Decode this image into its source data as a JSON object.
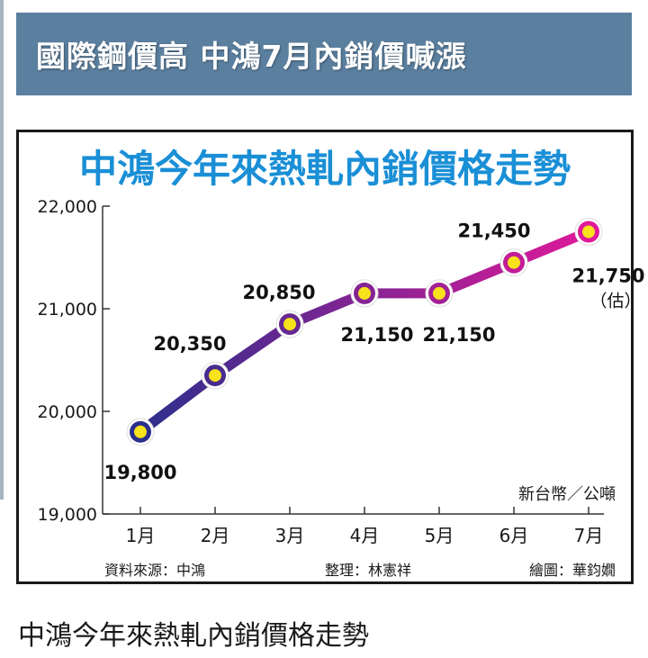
{
  "header": {
    "title": "國際鋼價高 中鴻7月內銷價喊漲"
  },
  "caption": "中鴻今年來熱軋內銷價格走勢",
  "chart_data": {
    "type": "line",
    "title": "中鴻今年來熱軋內銷價格走勢",
    "unit": "新台幣／公噸",
    "categories": [
      "1月",
      "2月",
      "3月",
      "4月",
      "5月",
      "6月",
      "7月"
    ],
    "values": [
      19800,
      20350,
      20850,
      21150,
      21150,
      21450,
      21750
    ],
    "data_labels": [
      "19,800",
      "20,350",
      "20,850",
      "21,150",
      "21,150",
      "21,450",
      "21,750"
    ],
    "estimate_note": "（估）",
    "yticks": [
      "19,000",
      "20,000",
      "21,000",
      "22,000"
    ],
    "ytick_values": [
      19000,
      20000,
      21000,
      22000
    ],
    "ylim": [
      19000,
      22000
    ],
    "grid": false,
    "source": "資料來源：中鴻",
    "editor": "整理：林憲祥",
    "illustrator": "繪圖：華鈞嫺",
    "colors": {
      "title": "#1a8fd6",
      "line_start": "#2b2f8c",
      "line_end": "#e0199a",
      "marker_fill": "#f7e21b",
      "header_bg": "#5b7f9f"
    }
  }
}
